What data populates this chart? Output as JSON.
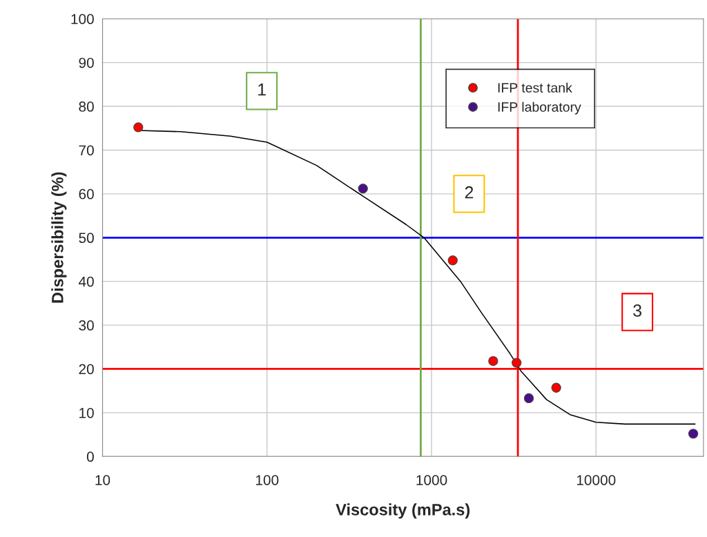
{
  "chart_data": {
    "type": "scatter",
    "xlabel": "Viscosity (mPa.s)",
    "ylabel": "Dispersibility (%)",
    "log": "x",
    "xlim": [
      10,
      45000
    ],
    "xticks": [
      10,
      100,
      1000,
      10000
    ],
    "ylim": [
      0,
      100
    ],
    "yticks": [
      0,
      10,
      20,
      30,
      40,
      50,
      60,
      70,
      80,
      90,
      100
    ],
    "grid": true,
    "legend": "top right",
    "marker": "circle",
    "series": [
      {
        "name": "IFP test tank",
        "color": "#ff0000",
        "x": [
          16.5,
          1346,
          2371,
          3289,
          5730
        ],
        "values": [
          75.2,
          44.8,
          21.8,
          21.4,
          15.7
        ]
      },
      {
        "name": "IFP laboratory",
        "color": "#4b0f8c",
        "x": [
          383,
          3906,
          39000
        ],
        "values": [
          61.2,
          13.3,
          5.2
        ]
      },
      {
        "type": "line",
        "color": "#000000",
        "marker": "none",
        "line_style": "solid",
        "x": [
          16.5,
          30,
          60,
          100,
          200,
          400,
          700,
          900,
          1500,
          2000,
          3000,
          3500,
          5000,
          7000,
          10000,
          15000,
          40000
        ],
        "values": [
          74.5,
          74.2,
          73.2,
          71.8,
          66.5,
          59,
          53,
          50,
          40,
          33,
          23.5,
          19.5,
          13,
          9.5,
          7.8,
          7.4,
          7.4
        ]
      }
    ],
    "ref_lines": [
      {
        "axis": "y",
        "value": 50,
        "color": "#0000ff"
      },
      {
        "axis": "y",
        "value": 20,
        "color": "#ff0000"
      },
      {
        "axis": "x",
        "value": 860,
        "color": "#70ad47"
      },
      {
        "axis": "x",
        "value": 3350,
        "color": "#ff0000"
      }
    ],
    "annotations": [
      "1",
      "2",
      "3"
    ]
  }
}
